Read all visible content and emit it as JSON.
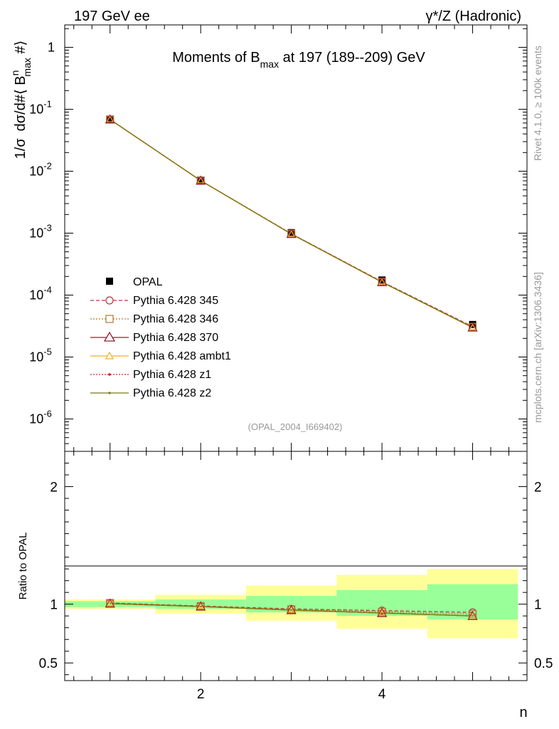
{
  "header": {
    "left_label": "197 GeV ee",
    "right_label": "γ*/Z (Hadronic)"
  },
  "side_labels": {
    "rivet": "Rivet 4.1.0, ≥ 100k events",
    "mcplots": "mcplots.cern.ch [arXiv:1306.3436]"
  },
  "watermark": "(OPAL_2004_I669402)",
  "chart_data": [
    {
      "panel": "main",
      "type": "line",
      "title": "Moments of B_max at 197 (189--209) GeV",
      "title_parts": {
        "pre": "Moments of B",
        "sub": "max",
        "post": " at 197 (189--209) GeV"
      },
      "ylabel": "1/σ  dσ/d#⟨ B^n_max #⟩",
      "ylabel_parts": {
        "a": "1/σ",
        "b": "dσ/d#⟨ B",
        "sup": "n",
        "sub": "max",
        "c": " #⟩"
      },
      "yscale": "log",
      "ylim": [
        3e-07,
        2.3
      ],
      "xlim": [
        0.5,
        5.6
      ],
      "ytick_labels": [
        {
          "base": "10",
          "exp": "-6"
        },
        {
          "base": "10",
          "exp": "-5"
        },
        {
          "base": "10",
          "exp": "-4"
        },
        {
          "base": "10",
          "exp": "-3"
        },
        {
          "base": "10",
          "exp": "-2"
        },
        {
          "base": "10",
          "exp": "-1"
        },
        {
          "base": "1",
          "exp": ""
        }
      ],
      "x": [
        1,
        2,
        3,
        4,
        5
      ],
      "data": {
        "name": "OPAL",
        "values": [
          0.068,
          0.0072,
          0.00102,
          0.000175,
          3.35e-05
        ]
      },
      "series": [
        {
          "name": "Pythia 6.428 345",
          "color": "#c0304a",
          "values": [
            0.0685,
            0.00705,
            0.00098,
            0.000165,
            3.1e-05
          ]
        },
        {
          "name": "Pythia 6.428 346",
          "color": "#b07a30",
          "values": [
            0.0685,
            0.00705,
            0.00098,
            0.000163,
            3.05e-05
          ]
        },
        {
          "name": "Pythia 6.428 370",
          "color": "#9b1c2e",
          "values": [
            0.0685,
            0.00705,
            0.00097,
            0.000162,
            3e-05
          ]
        },
        {
          "name": "Pythia 6.428 ambt1",
          "color": "#f0b020",
          "values": [
            0.0685,
            0.00705,
            0.00097,
            0.000162,
            3e-05
          ]
        },
        {
          "name": "Pythia 6.428 z1",
          "color": "#e02020",
          "values": [
            0.0685,
            0.00705,
            0.00097,
            0.000162,
            3e-05
          ]
        },
        {
          "name": "Pythia 6.428 z2",
          "color": "#7a7a10",
          "values": [
            0.0685,
            0.00705,
            0.00097,
            0.000162,
            3e-05
          ]
        }
      ],
      "legend": "left-middle"
    },
    {
      "panel": "ratio",
      "type": "line",
      "ylabel": "Ratio to OPAL",
      "xlabel": "n",
      "ylim": [
        0.35,
        2.3
      ],
      "xlim": [
        0.5,
        5.6
      ],
      "ytick_labels": [
        "0.5",
        "1",
        "2"
      ],
      "ytick_values": [
        0.5,
        1,
        2
      ],
      "xtick_labels": [
        "2",
        "4"
      ],
      "xtick_values": [
        2,
        4
      ],
      "bins": [
        [
          0.5,
          1.5
        ],
        [
          1.5,
          2.5
        ],
        [
          2.5,
          3.5
        ],
        [
          3.5,
          4.5
        ],
        [
          4.5,
          5.5
        ]
      ],
      "band_yellow": [
        [
          0.96,
          1.04
        ],
        [
          0.92,
          1.08
        ],
        [
          0.86,
          1.16
        ],
        [
          0.79,
          1.25
        ],
        [
          0.71,
          1.3
        ]
      ],
      "band_green": [
        [
          0.975,
          1.025
        ],
        [
          0.96,
          1.04
        ],
        [
          0.93,
          1.07
        ],
        [
          0.9,
          1.12
        ],
        [
          0.87,
          1.17
        ]
      ],
      "series": [
        {
          "name": "Pythia 6.428 345",
          "values": [
            1.01,
            0.985,
            0.96,
            0.945,
            0.93
          ]
        },
        {
          "name": "Pythia 6.428 346",
          "values": [
            1.01,
            0.983,
            0.955,
            0.935,
            0.915
          ]
        },
        {
          "name": "Pythia 6.428 370",
          "values": [
            1.005,
            0.98,
            0.95,
            0.925,
            0.9
          ]
        },
        {
          "name": "Pythia 6.428 ambt1",
          "values": [
            1.005,
            0.98,
            0.95,
            0.925,
            0.9
          ]
        },
        {
          "name": "Pythia 6.428 z1",
          "values": [
            1.005,
            0.98,
            0.95,
            0.925,
            0.9
          ]
        },
        {
          "name": "Pythia 6.428 z2",
          "values": [
            1.005,
            0.98,
            0.95,
            0.925,
            0.9
          ]
        }
      ]
    }
  ]
}
